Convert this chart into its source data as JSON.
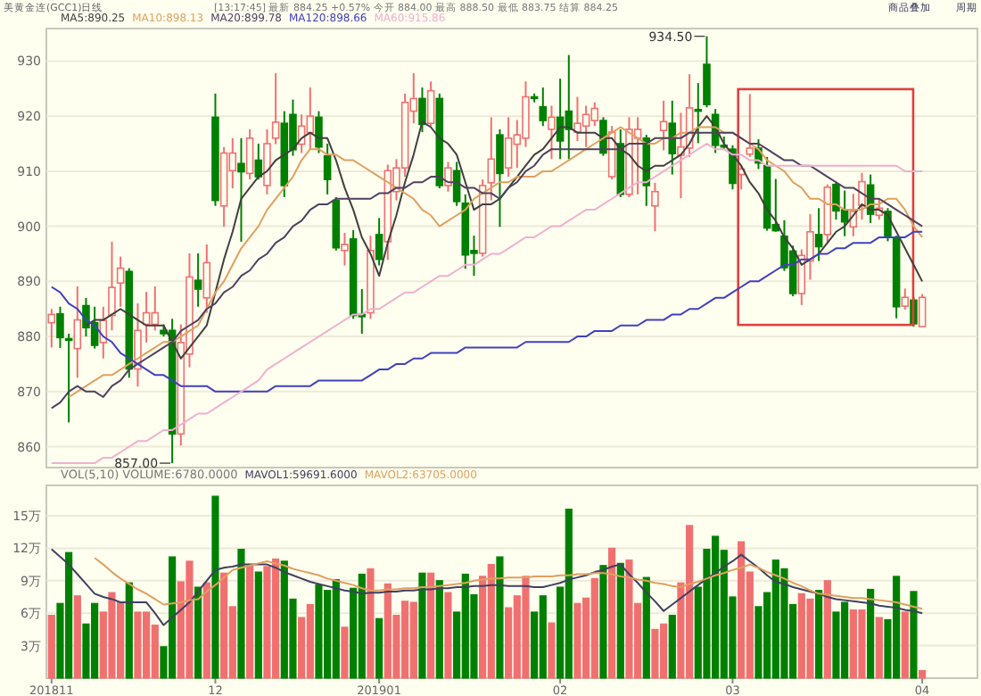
{
  "chart_data": [
    {
      "type": "candlestick",
      "title": "美黄金连(GCC1)日线",
      "subtitle": "[13:17:45] 最新 884.25 +0.57% 今开 884.00 最高 888.50 最低 883.75 结算 884.25",
      "legend": "top left",
      "grid": "y",
      "tick_labels": "y",
      "ylim": [
        856.2,
        935.9
      ],
      "yticks": [
        860,
        870,
        880,
        890,
        900,
        910,
        920,
        930
      ],
      "categories": [
        "201811",
        null,
        null,
        null,
        null,
        null,
        null,
        null,
        null,
        null,
        null,
        null,
        null,
        null,
        null,
        null,
        null,
        null,
        null,
        "12",
        null,
        null,
        null,
        null,
        null,
        null,
        null,
        null,
        null,
        null,
        null,
        null,
        null,
        null,
        null,
        null,
        null,
        null,
        "201901",
        null,
        null,
        null,
        null,
        null,
        null,
        null,
        null,
        null,
        null,
        null,
        null,
        null,
        null,
        null,
        null,
        null,
        null,
        null,
        null,
        "02",
        null,
        null,
        null,
        null,
        null,
        null,
        null,
        null,
        null,
        null,
        null,
        null,
        null,
        null,
        null,
        null,
        null,
        null,
        null,
        "03",
        null,
        null,
        null,
        null,
        null,
        null,
        null,
        null,
        null,
        null,
        null,
        null,
        null,
        null,
        null,
        null,
        null,
        null,
        null,
        null,
        null,
        "04"
      ],
      "ohlc": [
        [
          882.5,
          885,
          878,
          884
        ],
        [
          884.1,
          885.4,
          877.9,
          879.8
        ],
        [
          879.6,
          880.5,
          864.4,
          879.3
        ],
        [
          877.8,
          889.1,
          872.5,
          883.0
        ],
        [
          885.6,
          887.0,
          880.0,
          881.6
        ],
        [
          882.5,
          885.4,
          877.8,
          878.4
        ],
        [
          878.9,
          885.4,
          876.0,
          882.9
        ],
        [
          883.8,
          897.2,
          881.1,
          888.9
        ],
        [
          889.7,
          894.5,
          885.4,
          892.4
        ],
        [
          891.8,
          892.4,
          872.5,
          874.1
        ],
        [
          874.1,
          886.0,
          870.9,
          881.1
        ],
        [
          882.2,
          888.1,
          878.9,
          884.3
        ],
        [
          882.2,
          889.1,
          881.1,
          884.3
        ],
        [
          881.1,
          882.2,
          880.0,
          880.5
        ],
        [
          881.1,
          883.2,
          857.0,
          862.3
        ],
        [
          862.3,
          882.2,
          860.2,
          878.9
        ],
        [
          876.8,
          895.1,
          874.4,
          890.8
        ],
        [
          890.2,
          895.1,
          885.4,
          888.6
        ],
        [
          887.0,
          896.7,
          884.3,
          893.4
        ],
        [
          919.8,
          924.1,
          903.7,
          904.7
        ],
        [
          903.7,
          914.4,
          899.9,
          913.3
        ],
        [
          910.1,
          916.0,
          906.9,
          913.3
        ],
        [
          911.4,
          916.0,
          897.2,
          909.9
        ],
        [
          909.6,
          917.6,
          908.5,
          916.0
        ],
        [
          912.0,
          915.0,
          908.5,
          909.0
        ],
        [
          907.4,
          917.6,
          905.8,
          915.0
        ],
        [
          916.0,
          927.8,
          914.9,
          918.9
        ],
        [
          918.7,
          920.9,
          905.3,
          907.4
        ],
        [
          920.3,
          923.0,
          912.8,
          913.9
        ],
        [
          914.9,
          920.3,
          913.3,
          918.2
        ],
        [
          917.0,
          925.2,
          913.9,
          920.0
        ],
        [
          919.8,
          920.9,
          913.3,
          914.4
        ],
        [
          912.8,
          915.0,
          905.8,
          908.5
        ],
        [
          904.7,
          905.3,
          895.6,
          896.1
        ],
        [
          895.6,
          898.8,
          892.9,
          896.7
        ],
        [
          897.7,
          899.3,
          883.2,
          883.8
        ],
        [
          884.0,
          888.6,
          880.5,
          883.6
        ],
        [
          884.3,
          898.3,
          883.2,
          895.6
        ],
        [
          898.5,
          901.5,
          892.9,
          894.0
        ],
        [
          897.2,
          911.2,
          893.9,
          910.1
        ],
        [
          906.3,
          912.2,
          904.7,
          910.6
        ],
        [
          910.6,
          924.1,
          909.0,
          922.5
        ],
        [
          920.9,
          927.8,
          918.7,
          923.2
        ],
        [
          923.2,
          925.2,
          917.1,
          918.5
        ],
        [
          918.7,
          926.3,
          918.2,
          924.6
        ],
        [
          923.2,
          924.1,
          906.9,
          907.4
        ],
        [
          907.4,
          911.7,
          906.3,
          910.6
        ],
        [
          910.1,
          911.7,
          903.7,
          904.5
        ],
        [
          904.2,
          905.8,
          892.3,
          894.8
        ],
        [
          895.6,
          898.3,
          891.0,
          895.1
        ],
        [
          895.1,
          908.5,
          894.5,
          907.4
        ],
        [
          907.9,
          919.8,
          904.7,
          912.2
        ],
        [
          916.6,
          917.6,
          899.9,
          909.6
        ],
        [
          910.6,
          919.8,
          909.0,
          916.0
        ],
        [
          914.9,
          919.3,
          910.6,
          916.6
        ],
        [
          916.0,
          926.3,
          914.4,
          923.5
        ],
        [
          923.5,
          924.1,
          922.5,
          923.2
        ],
        [
          921.7,
          925.2,
          918.2,
          919.2
        ],
        [
          917.6,
          921.9,
          912.2,
          919.8
        ],
        [
          919.8,
          926.8,
          912.2,
          915.5
        ],
        [
          920.9,
          931.1,
          912.2,
          917.6
        ],
        [
          917.1,
          923.5,
          915.5,
          918.7
        ],
        [
          918.2,
          921.9,
          914.4,
          920.3
        ],
        [
          919.2,
          922.5,
          918.2,
          921.4
        ],
        [
          919.2,
          919.8,
          912.8,
          913.3
        ],
        [
          909.0,
          918.2,
          908.5,
          917.1
        ],
        [
          915.0,
          917.6,
          905.3,
          905.8
        ],
        [
          905.8,
          919.8,
          905.3,
          917.6
        ],
        [
          916.0,
          919.8,
          905.8,
          917.6
        ],
        [
          916.0,
          916.6,
          903.7,
          907.4
        ],
        [
          903.7,
          907.9,
          899.1,
          906.3
        ],
        [
          917.4,
          922.8,
          913.8,
          919.0
        ],
        [
          918.7,
          922.8,
          909.4,
          913.2
        ],
        [
          912.9,
          920.6,
          905.1,
          914.4
        ],
        [
          914.2,
          927.6,
          912.6,
          921.5
        ],
        [
          921.2,
          926.0,
          915.1,
          920.9
        ],
        [
          929.4,
          934.5,
          921.6,
          922.1
        ],
        [
          920.3,
          921.3,
          913.3,
          914.7
        ],
        [
          914.7,
          916.3,
          913.9,
          914.4
        ],
        [
          914.0,
          914.7,
          906.7,
          907.8
        ],
        [
          909.4,
          911.0,
          906.7,
          910.4
        ],
        [
          913.1,
          924.0,
          912.6,
          914.2
        ],
        [
          914.2,
          915.8,
          910.4,
          911.5
        ],
        [
          911.0,
          912.6,
          899.2,
          899.7
        ],
        [
          900.3,
          908.6,
          899.0,
          899.2
        ],
        [
          898.2,
          901.1,
          891.9,
          892.5
        ],
        [
          895.5,
          896.5,
          887.3,
          887.8
        ],
        [
          887.8,
          895.8,
          885.7,
          894.7
        ],
        [
          893.7,
          902.2,
          890.3,
          899.0
        ],
        [
          898.5,
          903.3,
          893.7,
          896.3
        ],
        [
          898.5,
          907.6,
          896.9,
          907.1
        ],
        [
          907.6,
          908.1,
          901.2,
          902.8
        ],
        [
          903.0,
          906.5,
          898.2,
          900.8
        ],
        [
          899.9,
          905.9,
          898.2,
          902.7
        ],
        [
          903.8,
          909.7,
          901.2,
          908.1
        ],
        [
          907.5,
          909.4,
          900.6,
          902.2
        ],
        [
          902.0,
          905.1,
          901.2,
          903.3
        ],
        [
          902.7,
          903.3,
          897.3,
          898.0
        ],
        [
          897.7,
          898.3,
          883.3,
          885.4
        ],
        [
          885.5,
          888.7,
          884.9,
          887.1
        ],
        [
          886.6,
          887.1,
          881.8,
          882.3
        ],
        [
          881.8,
          887.7,
          881.8,
          887.1
        ]
      ],
      "colors": [
        "#f07070",
        "#008000",
        "#008000",
        "#f07070",
        "#008000",
        "#008000",
        "#f07070",
        "#f07070",
        "#f07070",
        "#008000",
        "#f07070",
        "#f07070",
        "#f07070",
        "#008000",
        "#008000",
        "#f07070",
        "#f07070",
        "#008000",
        "#f07070",
        "#008000",
        "#f07070",
        "#f07070",
        "#008000",
        "#f07070",
        "#008000",
        "#f07070",
        "#f07070",
        "#008000",
        "#008000",
        "#f07070",
        "#f07070",
        "#008000",
        "#008000",
        "#008000",
        "#f07070",
        "#008000",
        "#008000",
        "#f07070",
        "#008000",
        "#f07070",
        "#f07070",
        "#f07070",
        "#f07070",
        "#008000",
        "#f07070",
        "#008000",
        "#f07070",
        "#008000",
        "#008000",
        "#008000",
        "#f07070",
        "#f07070",
        "#008000",
        "#f07070",
        "#f07070",
        "#f07070",
        "#008000",
        "#008000",
        "#f07070",
        "#008000",
        "#008000",
        "#f07070",
        "#f07070",
        "#f07070",
        "#008000",
        "#f07070",
        "#008000",
        "#f07070",
        "#f07070",
        "#008000",
        "#f07070",
        "#f07070",
        "#008000",
        "#f07070",
        "#f07070",
        "#008000",
        "#008000",
        "#008000",
        "#008000",
        "#008000",
        "#f07070",
        "#f07070",
        "#008000",
        "#008000",
        "#008000",
        "#008000",
        "#008000",
        "#f07070",
        "#f07070",
        "#008000",
        "#f07070",
        "#008000",
        "#008000",
        "#f07070",
        "#f07070",
        "#008000",
        "#f07070",
        "#008000",
        "#008000",
        "#f07070",
        "#008000",
        "#f07070"
      ],
      "series": [
        {
          "name": "MA5:890.25",
          "type": "line",
          "color": "#404040",
          "values": [
            null,
            null,
            null,
            null,
            882,
            883,
            883,
            884,
            885,
            884,
            883,
            882,
            882,
            882,
            879,
            876,
            878,
            880,
            882,
            888,
            894,
            899,
            905,
            907,
            909,
            910,
            912,
            913,
            914,
            916,
            917,
            916,
            916,
            912,
            907,
            903,
            898,
            895,
            891,
            897,
            902,
            908,
            913,
            919,
            918,
            916,
            915,
            913,
            908,
            903,
            904,
            904,
            905,
            907,
            909,
            911,
            913,
            914,
            916,
            918,
            918,
            917,
            917,
            917,
            916,
            916,
            914,
            913,
            911,
            910,
            911,
            911,
            912,
            913,
            915,
            918,
            920,
            918,
            915,
            913,
            911,
            908,
            906,
            903,
            901,
            898,
            896,
            893,
            894,
            895,
            897,
            899,
            900,
            902,
            904,
            903,
            903,
            902,
            899,
            896,
            893,
            890
          ]
        },
        {
          "name": "MA10:898.13",
          "type": "line",
          "color": "#e0a060",
          "values": [
            null,
            null,
            869,
            870,
            871,
            872,
            873,
            873,
            874,
            875,
            876,
            877,
            878,
            879,
            879,
            880,
            881,
            882,
            885,
            888,
            890,
            893,
            896,
            898,
            900,
            903,
            905,
            907,
            909,
            912,
            914,
            914,
            913,
            913,
            912,
            912,
            911,
            910,
            909,
            908,
            907,
            906,
            905,
            903,
            902,
            900,
            901,
            902,
            903,
            905,
            906,
            907,
            908,
            908,
            909,
            909,
            909,
            910,
            910,
            911,
            912,
            913,
            914,
            915,
            916,
            917,
            918,
            917,
            916,
            915,
            915,
            916,
            916,
            917,
            917,
            918,
            918,
            918,
            917,
            917,
            916,
            915,
            914,
            912,
            911,
            910,
            908,
            907,
            905,
            905,
            904,
            904,
            903,
            903,
            903,
            904,
            904,
            905,
            905,
            903,
            900,
            898
          ]
        },
        {
          "name": "MA20:899.78",
          "type": "line",
          "color": "#504060",
          "values": [
            867,
            868,
            870,
            871,
            870,
            870,
            869,
            871,
            872,
            874,
            875,
            876,
            877,
            878,
            879,
            881,
            882,
            883,
            885,
            886,
            888,
            889,
            891,
            892,
            894,
            895,
            897,
            898,
            900,
            901,
            903,
            904,
            904,
            905,
            905,
            905,
            905,
            905,
            906,
            906,
            907,
            907,
            908,
            908,
            909,
            909,
            908,
            908,
            907,
            907,
            906,
            906,
            905,
            907,
            908,
            910,
            911,
            913,
            914,
            914,
            914,
            914,
            914,
            914,
            914,
            914,
            914,
            915,
            915,
            915,
            916,
            916,
            916,
            916,
            917,
            917,
            917,
            917,
            917,
            917,
            916,
            915,
            915,
            914,
            913,
            912,
            912,
            911,
            911,
            910,
            909,
            908,
            907,
            907,
            906,
            905,
            905,
            904,
            903,
            902,
            901,
            900
          ]
        },
        {
          "name": "MA120:898.66",
          "type": "line",
          "color": "#4040c0",
          "values": [
            889,
            888,
            886,
            885,
            883,
            882,
            880,
            879,
            877,
            876,
            875,
            874,
            873,
            873,
            872,
            871,
            871,
            871,
            871,
            870,
            870,
            870,
            870,
            870,
            870,
            870,
            871,
            871,
            871,
            871,
            871,
            872,
            872,
            872,
            872,
            872,
            872,
            873,
            874,
            874,
            875,
            875,
            876,
            876,
            877,
            877,
            877,
            877,
            878,
            878,
            878,
            878,
            878,
            878,
            878,
            879,
            879,
            879,
            879,
            879,
            879,
            880,
            880,
            881,
            881,
            881,
            882,
            882,
            882,
            883,
            883,
            883,
            884,
            884,
            885,
            885,
            886,
            887,
            887,
            888,
            889,
            890,
            890,
            891,
            892,
            893,
            893,
            894,
            894,
            895,
            895,
            896,
            896,
            897,
            897,
            897,
            898,
            898,
            898,
            898,
            899,
            899
          ]
        },
        {
          "name": "MA60:915.86",
          "type": "line",
          "color": "#f0b0d0",
          "values": [
            857,
            857,
            857,
            857,
            857,
            857,
            858,
            858,
            859,
            860,
            861,
            861,
            862,
            863,
            863,
            864,
            865,
            866,
            866,
            867,
            868,
            869,
            870,
            871,
            872,
            874,
            875,
            876,
            877,
            878,
            879,
            880,
            881,
            882,
            883,
            884,
            884,
            885,
            885,
            886,
            887,
            888,
            888,
            889,
            890,
            891,
            891,
            892,
            893,
            893,
            894,
            895,
            895,
            896,
            897,
            898,
            898,
            899,
            900,
            900,
            901,
            902,
            903,
            903,
            904,
            905,
            906,
            907,
            908,
            908,
            909,
            910,
            911,
            912,
            913,
            914,
            915,
            914,
            914,
            913,
            913,
            912,
            912,
            911,
            911,
            911,
            911,
            911,
            911,
            911,
            911,
            911,
            911,
            911,
            911,
            911,
            911,
            911,
            911,
            910,
            910,
            910
          ]
        }
      ],
      "annotations": [
        "934.50",
        "857.00",
        "商品叠加",
        "周期"
      ]
    },
    {
      "type": "bar",
      "title": "VOL(5,10) VOLUME:6780.0000",
      "legend": "top left",
      "grid": "y",
      "ylim": [
        0,
        17.8
      ],
      "yticks": [
        {
          "value": 3,
          "label": "3万"
        },
        {
          "value": 6,
          "label": "6万"
        },
        {
          "value": 9,
          "label": "9万"
        },
        {
          "value": 12,
          "label": "12万"
        },
        {
          "value": 15,
          "label": "15万"
        }
      ],
      "categories": [
        "201811",
        null,
        null,
        null,
        null,
        null,
        null,
        null,
        null,
        null,
        null,
        null,
        null,
        null,
        null,
        null,
        null,
        null,
        null,
        "12",
        null,
        null,
        null,
        null,
        null,
        null,
        null,
        null,
        null,
        null,
        null,
        null,
        null,
        null,
        null,
        null,
        null,
        null,
        "201901",
        null,
        null,
        null,
        null,
        null,
        null,
        null,
        null,
        null,
        null,
        null,
        null,
        null,
        null,
        null,
        null,
        null,
        null,
        null,
        null,
        "02",
        null,
        null,
        null,
        null,
        null,
        null,
        null,
        null,
        null,
        null,
        null,
        null,
        null,
        null,
        null,
        null,
        null,
        null,
        null,
        "03",
        null,
        null,
        null,
        null,
        null,
        null,
        null,
        null,
        null,
        null,
        null,
        null,
        null,
        null,
        null,
        null,
        null,
        null,
        null,
        null,
        null,
        "04"
      ],
      "values": [
        5.8,
        6.9,
        11.6,
        7.6,
        5.0,
        6.9,
        6.1,
        7.9,
        7.0,
        8.8,
        6.1,
        6.1,
        4.9,
        2.9,
        11.2,
        8.9,
        10.8,
        8.4,
        8.8,
        16.8,
        9.7,
        6.6,
        11.9,
        10.4,
        9.8,
        10.3,
        11.0,
        10.8,
        7.3,
        5.6,
        6.8,
        8.6,
        8.1,
        9.1,
        4.7,
        8.3,
        9.6,
        10.1,
        5.5,
        8.7,
        5.8,
        7.1,
        7.0,
        9.7,
        9.7,
        9.0,
        7.9,
        6.1,
        9.6,
        7.7,
        9.4,
        10.5,
        11.2,
        6.5,
        7.6,
        9.4,
        6.1,
        7.6,
        5.1,
        8.4,
        15.6,
        6.9,
        7.4,
        9.2,
        10.4,
        12.0,
        10.6,
        10.9,
        6.9,
        9.3,
        4.5,
        5.0,
        5.8,
        8.8,
        14.1,
        8.4,
        11.9,
        13.1,
        11.8,
        7.5,
        12.6,
        9.8,
        6.6,
        7.9,
        10.9,
        10.1,
        6.8,
        7.8,
        7.3,
        8.1,
        9.0,
        6.1,
        7.0,
        6.3,
        6.3,
        8.2,
        5.6,
        5.4,
        9.4,
        6.1,
        8.0,
        0.7
      ],
      "colors": [
        "#f07070",
        "#008000",
        "#008000",
        "#f07070",
        "#008000",
        "#008000",
        "#f07070",
        "#f07070",
        "#f07070",
        "#008000",
        "#f07070",
        "#f07070",
        "#f07070",
        "#008000",
        "#008000",
        "#f07070",
        "#f07070",
        "#008000",
        "#f07070",
        "#008000",
        "#f07070",
        "#f07070",
        "#008000",
        "#f07070",
        "#008000",
        "#f07070",
        "#f07070",
        "#008000",
        "#008000",
        "#f07070",
        "#f07070",
        "#008000",
        "#008000",
        "#008000",
        "#f07070",
        "#008000",
        "#008000",
        "#f07070",
        "#008000",
        "#f07070",
        "#f07070",
        "#f07070",
        "#f07070",
        "#008000",
        "#f07070",
        "#008000",
        "#f07070",
        "#008000",
        "#008000",
        "#008000",
        "#f07070",
        "#f07070",
        "#008000",
        "#f07070",
        "#f07070",
        "#f07070",
        "#008000",
        "#008000",
        "#f07070",
        "#008000",
        "#008000",
        "#f07070",
        "#f07070",
        "#f07070",
        "#008000",
        "#f07070",
        "#008000",
        "#f07070",
        "#f07070",
        "#008000",
        "#f07070",
        "#f07070",
        "#008000",
        "#f07070",
        "#f07070",
        "#008000",
        "#008000",
        "#008000",
        "#008000",
        "#008000",
        "#f07070",
        "#f07070",
        "#008000",
        "#008000",
        "#008000",
        "#008000",
        "#008000",
        "#f07070",
        "#f07070",
        "#008000",
        "#f07070",
        "#008000",
        "#008000",
        "#f07070",
        "#f07070",
        "#008000",
        "#f07070",
        "#008000",
        "#008000",
        "#f07070",
        "#008000",
        "#f07070"
      ],
      "series": [
        {
          "name": "MAVOL1:59691.6000",
          "type": "line",
          "color": "#404060",
          "values": [
            11.9,
            11.2,
            10.5,
            9.6,
            8.7,
            7.8,
            7.5,
            7.3,
            7.0,
            7.0,
            7.0,
            7.0,
            6.0,
            4.9,
            5.6,
            6.3,
            7.0,
            8.0,
            9.0,
            10.0,
            10.2,
            10.3,
            10.5,
            10.5,
            10.5,
            10.5,
            10.2,
            9.8,
            9.5,
            9.2,
            8.9,
            8.7,
            8.5,
            8.3,
            8.1,
            8.0,
            7.8,
            7.9,
            7.9,
            8.0,
            8.0,
            8.1,
            8.1,
            8.2,
            8.2,
            8.3,
            8.3,
            8.4,
            8.4,
            8.5,
            8.5,
            8.6,
            8.6,
            8.5,
            8.5,
            8.5,
            8.4,
            8.4,
            8.6,
            8.8,
            9.1,
            9.3,
            9.5,
            9.8,
            10.0,
            10.3,
            10.5,
            9.6,
            8.8,
            7.9,
            7.1,
            6.2,
            6.8,
            7.4,
            8.0,
            8.6,
            9.2,
            9.7,
            10.3,
            10.8,
            11.4,
            10.8,
            10.2,
            9.5,
            8.9,
            8.7,
            8.4,
            8.2,
            8.0,
            7.8,
            7.5,
            7.3,
            7.2,
            7.1,
            7.0,
            6.9,
            6.7,
            6.6,
            6.5,
            6.3,
            6.2,
            6.0
          ]
        },
        {
          "name": "MAVOL2:63705.0000",
          "type": "line",
          "color": "#e0a060",
          "values": [
            null,
            null,
            null,
            null,
            null,
            11.1,
            10.5,
            9.8,
            9.2,
            8.7,
            8.2,
            7.8,
            7.3,
            6.8,
            6.9,
            7.0,
            7.2,
            7.3,
            8.0,
            8.6,
            9.3,
            10.0,
            10.2,
            10.4,
            10.6,
            10.8,
            10.6,
            10.4,
            10.1,
            9.9,
            9.7,
            9.5,
            9.2,
            9.0,
            8.8,
            8.6,
            8.3,
            8.1,
            8.1,
            8.2,
            8.2,
            8.3,
            8.3,
            8.4,
            8.4,
            8.5,
            8.6,
            8.7,
            8.8,
            9.0,
            9.1,
            9.2,
            9.2,
            9.3,
            9.3,
            9.3,
            9.4,
            9.4,
            9.4,
            9.5,
            9.5,
            9.6,
            9.6,
            9.7,
            9.7,
            9.6,
            9.4,
            9.3,
            9.1,
            9.0,
            8.8,
            8.7,
            8.5,
            8.4,
            8.7,
            8.9,
            9.2,
            9.5,
            9.7,
            10.0,
            10.2,
            10.5,
            10.2,
            9.8,
            9.5,
            9.2,
            8.8,
            8.5,
            8.1,
            7.8,
            7.7,
            7.6,
            7.5,
            7.4,
            7.4,
            7.3,
            7.2,
            7.1,
            7.0,
            6.8,
            6.6,
            6.4
          ]
        }
      ]
    }
  ]
}
